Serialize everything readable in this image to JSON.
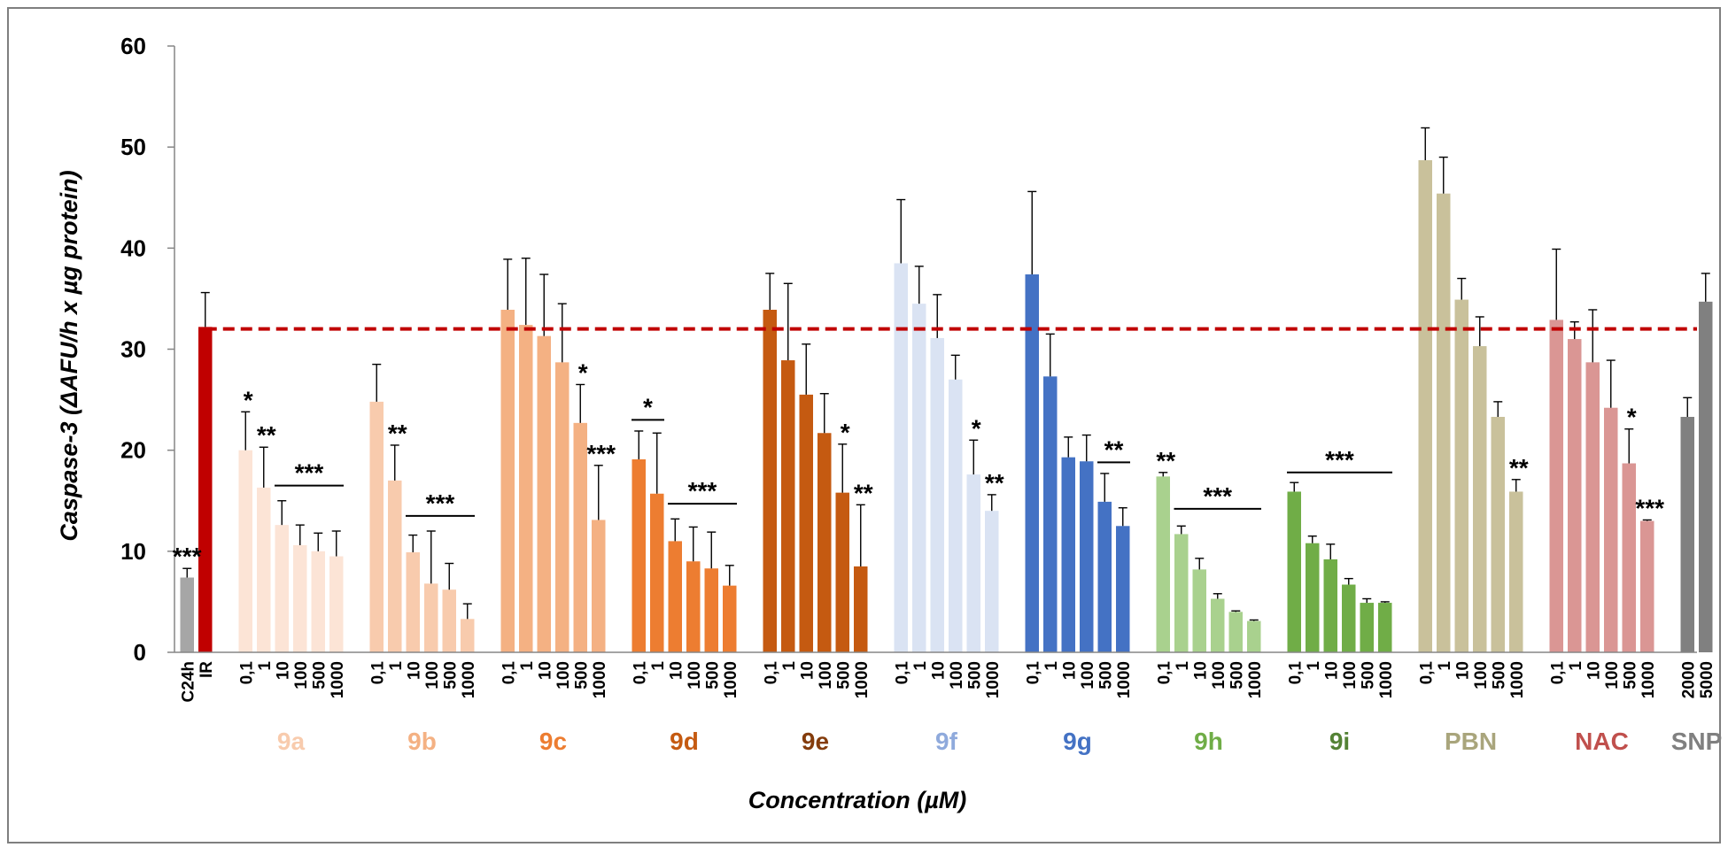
{
  "chart_data": {
    "type": "bar",
    "title": "",
    "xlabel": "Concentration (µM)",
    "ylabel": "Caspase-3  (ΔAFU/h x µg protein)",
    "ylim": [
      0,
      60
    ],
    "yticks": [
      0,
      10,
      20,
      30,
      40,
      50,
      60
    ],
    "grid": false,
    "reference_line": {
      "value": 32,
      "style": "dashed",
      "color": "#C00000"
    },
    "groups": [
      {
        "name": "",
        "color": "",
        "bars": [
          {
            "label": "C24h",
            "value": 7.4,
            "error": 0.9,
            "color": "#A6A6A6",
            "sig": "***"
          },
          {
            "label": "IR",
            "value": 32.2,
            "error": 3.4,
            "color": "#C00000",
            "sig": ""
          }
        ]
      },
      {
        "name": "9a",
        "color": "#F8CBAD",
        "bars": [
          {
            "label": "0,1",
            "value": 20.0,
            "error": 3.8,
            "color": "#FCE4D6",
            "sig": "*"
          },
          {
            "label": "1",
            "value": 16.3,
            "error": 4.0,
            "color": "#FCE4D6",
            "sig": "**"
          },
          {
            "label": "10",
            "value": 12.6,
            "error": 2.4,
            "color": "#FCE4D6",
            "sig": ""
          },
          {
            "label": "100",
            "value": 10.6,
            "error": 2.0,
            "color": "#FCE4D6",
            "sig": ""
          },
          {
            "label": "500",
            "value": 10.0,
            "error": 1.8,
            "color": "#FCE4D6",
            "sig": ""
          },
          {
            "label": "1000",
            "value": 9.5,
            "error": 2.5,
            "color": "#FCE4D6",
            "sig": ""
          }
        ],
        "bracket": {
          "from": 2,
          "to": 5,
          "sig": "***",
          "value": 16.5
        }
      },
      {
        "name": "9b",
        "color": "#F4B183",
        "bars": [
          {
            "label": "0,1",
            "value": 24.8,
            "error": 3.7,
            "color": "#F8CBAD",
            "sig": ""
          },
          {
            "label": "1",
            "value": 17.0,
            "error": 3.5,
            "color": "#F8CBAD",
            "sig": "**"
          },
          {
            "label": "10",
            "value": 9.9,
            "error": 1.7,
            "color": "#F8CBAD",
            "sig": ""
          },
          {
            "label": "100",
            "value": 6.8,
            "error": 5.2,
            "color": "#F8CBAD",
            "sig": ""
          },
          {
            "label": "500",
            "value": 6.2,
            "error": 2.6,
            "color": "#F8CBAD",
            "sig": ""
          },
          {
            "label": "1000",
            "value": 3.3,
            "error": 1.5,
            "color": "#F8CBAD",
            "sig": ""
          }
        ],
        "bracket": {
          "from": 2,
          "to": 5,
          "sig": "***",
          "value": 13.5
        }
      },
      {
        "name": "9c",
        "color": "#ED7D31",
        "bars": [
          {
            "label": "0,1",
            "value": 33.9,
            "error": 5.0,
            "color": "#F4B183",
            "sig": ""
          },
          {
            "label": "1",
            "value": 32.4,
            "error": 6.6,
            "color": "#F4B183",
            "sig": ""
          },
          {
            "label": "10",
            "value": 31.3,
            "error": 6.1,
            "color": "#F4B183",
            "sig": ""
          },
          {
            "label": "100",
            "value": 28.7,
            "error": 5.8,
            "color": "#F4B183",
            "sig": ""
          },
          {
            "label": "500",
            "value": 22.7,
            "error": 3.8,
            "color": "#F4B183",
            "sig": "*"
          },
          {
            "label": "1000",
            "value": 13.1,
            "error": 5.4,
            "color": "#F4B183",
            "sig": "***"
          }
        ]
      },
      {
        "name": "9d",
        "color": "#C55A11",
        "bars": [
          {
            "label": "0,1",
            "value": 19.1,
            "error": 2.8,
            "color": "#ED7D31",
            "sig": ""
          },
          {
            "label": "1",
            "value": 15.7,
            "error": 6.0,
            "color": "#ED7D31",
            "sig": ""
          },
          {
            "label": "10",
            "value": 11.0,
            "error": 2.2,
            "color": "#ED7D31",
            "sig": ""
          },
          {
            "label": "100",
            "value": 9.0,
            "error": 3.4,
            "color": "#ED7D31",
            "sig": ""
          },
          {
            "label": "500",
            "value": 8.3,
            "error": 3.6,
            "color": "#ED7D31",
            "sig": ""
          },
          {
            "label": "1000",
            "value": 6.6,
            "error": 2.0,
            "color": "#ED7D31",
            "sig": ""
          }
        ],
        "bracket": {
          "from": 0,
          "to": 1,
          "sig": "*",
          "value": 23.0
        },
        "bracket2": {
          "from": 2,
          "to": 5,
          "sig": "***",
          "value": 14.7
        }
      },
      {
        "name": "9e",
        "color": "#843C0C",
        "bars": [
          {
            "label": "0,1",
            "value": 33.9,
            "error": 3.6,
            "color": "#C55A11",
            "sig": ""
          },
          {
            "label": "1",
            "value": 28.9,
            "error": 7.6,
            "color": "#C55A11",
            "sig": ""
          },
          {
            "label": "10",
            "value": 25.5,
            "error": 5.0,
            "color": "#C55A11",
            "sig": ""
          },
          {
            "label": "100",
            "value": 21.7,
            "error": 3.9,
            "color": "#C55A11",
            "sig": ""
          },
          {
            "label": "500",
            "value": 15.8,
            "error": 4.8,
            "color": "#C55A11",
            "sig": "*"
          },
          {
            "label": "1000",
            "value": 8.5,
            "error": 6.1,
            "color": "#C55A11",
            "sig": "**"
          }
        ]
      },
      {
        "name": "9f",
        "color": "#8FAADC",
        "bars": [
          {
            "label": "0,1",
            "value": 38.5,
            "error": 6.3,
            "color": "#DAE3F3",
            "sig": ""
          },
          {
            "label": "1",
            "value": 34.5,
            "error": 3.7,
            "color": "#DAE3F3",
            "sig": ""
          },
          {
            "label": "10",
            "value": 31.1,
            "error": 4.3,
            "color": "#DAE3F3",
            "sig": ""
          },
          {
            "label": "100",
            "value": 27.0,
            "error": 2.4,
            "color": "#DAE3F3",
            "sig": ""
          },
          {
            "label": "500",
            "value": 17.6,
            "error": 3.4,
            "color": "#DAE3F3",
            "sig": "*"
          },
          {
            "label": "1000",
            "value": 14.0,
            "error": 1.6,
            "color": "#DAE3F3",
            "sig": "**"
          }
        ]
      },
      {
        "name": "9g",
        "color": "#4472C4",
        "bars": [
          {
            "label": "0,1",
            "value": 37.4,
            "error": 8.2,
            "color": "#4472C4",
            "sig": ""
          },
          {
            "label": "1",
            "value": 27.3,
            "error": 4.2,
            "color": "#4472C4",
            "sig": ""
          },
          {
            "label": "10",
            "value": 19.3,
            "error": 2.0,
            "color": "#4472C4",
            "sig": ""
          },
          {
            "label": "100",
            "value": 18.9,
            "error": 2.6,
            "color": "#4472C4",
            "sig": ""
          },
          {
            "label": "500",
            "value": 14.9,
            "error": 2.8,
            "color": "#4472C4",
            "sig": ""
          },
          {
            "label": "1000",
            "value": 12.5,
            "error": 1.8,
            "color": "#4472C4",
            "sig": ""
          }
        ],
        "bracket": {
          "from": 4,
          "to": 5,
          "sig": "**",
          "value": 18.8
        }
      },
      {
        "name": "9h",
        "color": "#70AD47",
        "bars": [
          {
            "label": "0,1",
            "value": 17.4,
            "error": 0.4,
            "color": "#A9D18E",
            "sig": "**"
          },
          {
            "label": "1",
            "value": 11.7,
            "error": 0.8,
            "color": "#A9D18E",
            "sig": ""
          },
          {
            "label": "10",
            "value": 8.2,
            "error": 1.1,
            "color": "#A9D18E",
            "sig": ""
          },
          {
            "label": "100",
            "value": 5.3,
            "error": 0.5,
            "color": "#A9D18E",
            "sig": ""
          },
          {
            "label": "500",
            "value": 4.0,
            "error": 0.1,
            "color": "#A9D18E",
            "sig": ""
          },
          {
            "label": "1000",
            "value": 3.1,
            "error": 0.1,
            "color": "#A9D18E",
            "sig": ""
          }
        ],
        "bracket": {
          "from": 1,
          "to": 5,
          "sig": "***",
          "value": 14.2
        }
      },
      {
        "name": "9i",
        "color": "#548235",
        "bars": [
          {
            "label": "0,1",
            "value": 15.9,
            "error": 0.9,
            "color": "#70AD47",
            "sig": ""
          },
          {
            "label": "1",
            "value": 10.8,
            "error": 0.7,
            "color": "#70AD47",
            "sig": ""
          },
          {
            "label": "10",
            "value": 9.2,
            "error": 1.5,
            "color": "#70AD47",
            "sig": ""
          },
          {
            "label": "100",
            "value": 6.7,
            "error": 0.6,
            "color": "#70AD47",
            "sig": ""
          },
          {
            "label": "500",
            "value": 4.9,
            "error": 0.4,
            "color": "#70AD47",
            "sig": ""
          },
          {
            "label": "1000",
            "value": 4.9,
            "error": 0.1,
            "color": "#70AD47",
            "sig": ""
          }
        ],
        "bracket": {
          "from": 0,
          "to": 5,
          "sig": "***",
          "value": 17.8
        }
      },
      {
        "name": "PBN",
        "color": "#A9A57C",
        "bars": [
          {
            "label": "0,1",
            "value": 48.7,
            "error": 3.2,
            "color": "#C9C19B",
            "sig": ""
          },
          {
            "label": "1",
            "value": 45.4,
            "error": 3.6,
            "color": "#C9C19B",
            "sig": ""
          },
          {
            "label": "10",
            "value": 34.9,
            "error": 2.1,
            "color": "#C9C19B",
            "sig": ""
          },
          {
            "label": "100",
            "value": 30.3,
            "error": 2.9,
            "color": "#C9C19B",
            "sig": ""
          },
          {
            "label": "500",
            "value": 23.3,
            "error": 1.5,
            "color": "#C9C19B",
            "sig": ""
          },
          {
            "label": "1000",
            "value": 15.9,
            "error": 1.2,
            "color": "#C9C19B",
            "sig": "**"
          }
        ]
      },
      {
        "name": "NAC",
        "color": "#C0504D",
        "bars": [
          {
            "label": "0,1",
            "value": 32.9,
            "error": 7.0,
            "color": "#DA9694",
            "sig": ""
          },
          {
            "label": "1",
            "value": 31.0,
            "error": 1.7,
            "color": "#DA9694",
            "sig": ""
          },
          {
            "label": "10",
            "value": 28.7,
            "error": 5.2,
            "color": "#DA9694",
            "sig": ""
          },
          {
            "label": "100",
            "value": 24.2,
            "error": 4.7,
            "color": "#DA9694",
            "sig": ""
          },
          {
            "label": "500",
            "value": 18.7,
            "error": 3.4,
            "color": "#DA9694",
            "sig": "*"
          },
          {
            "label": "1000",
            "value": 13.0,
            "error": 0.1,
            "color": "#DA9694",
            "sig": "***"
          }
        ]
      },
      {
        "name": "SNP",
        "color": "#808080",
        "bars": [
          {
            "label": "2000",
            "value": 23.3,
            "error": 1.9,
            "color": "#808080",
            "sig": ""
          },
          {
            "label": "5000",
            "value": 34.7,
            "error": 2.8,
            "color": "#808080",
            "sig": ""
          }
        ]
      }
    ]
  }
}
